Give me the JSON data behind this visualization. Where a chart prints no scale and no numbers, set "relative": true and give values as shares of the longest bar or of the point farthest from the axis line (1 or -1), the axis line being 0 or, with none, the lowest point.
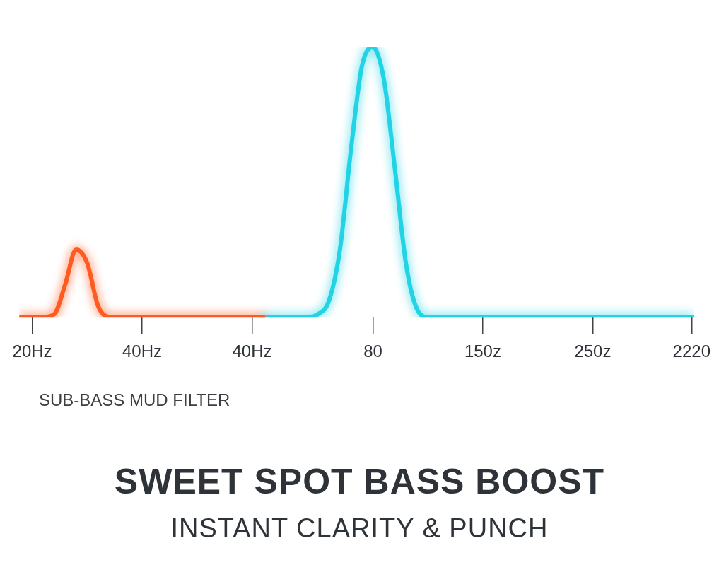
{
  "chart_data": {
    "type": "line",
    "title": "SWEET SPOT BASS BOOST",
    "subtitle": "INSTANT CLARITY & PUNCH",
    "annotations": [
      "SUB-BASS MUD FILTER"
    ],
    "relative": true,
    "grid": false,
    "legend": false,
    "marker": "none",
    "line_style": "solid",
    "categories": [
      null,
      "20Hz",
      null,
      null,
      null,
      null,
      null,
      null,
      null,
      null,
      null,
      "40Hz",
      null,
      null,
      null,
      null,
      null,
      null,
      null,
      null,
      null,
      "40Hz",
      null,
      null,
      null,
      null,
      null,
      null,
      null,
      null,
      null,
      null,
      "80",
      null,
      null,
      null,
      null,
      null,
      null,
      null,
      null,
      null,
      "150z",
      null,
      null,
      null,
      null,
      null,
      null,
      null,
      null,
      null,
      "250z",
      null,
      null,
      null,
      null,
      null,
      null,
      null,
      null,
      "2220"
    ],
    "series": [
      {
        "color": "#ff5a1f",
        "values": [
          0,
          0,
          0,
          0.01,
          0.12,
          0.25,
          0.2,
          0.04,
          0,
          0,
          0,
          0,
          0,
          0,
          0,
          0,
          0,
          0,
          0,
          0,
          0,
          0,
          0,
          null,
          null,
          null,
          null,
          null,
          null,
          null,
          null,
          null,
          null,
          null,
          null,
          null,
          null,
          null,
          null,
          null,
          null,
          null,
          null,
          null,
          null,
          null,
          null,
          null,
          null,
          null,
          null,
          null,
          null,
          null,
          null,
          null,
          null,
          null,
          null,
          null,
          null,
          null
        ]
      },
      {
        "color": "#22d3e6",
        "values": [
          null,
          null,
          null,
          null,
          null,
          null,
          null,
          null,
          null,
          null,
          null,
          null,
          null,
          null,
          null,
          null,
          null,
          null,
          null,
          null,
          null,
          null,
          0,
          0,
          0,
          0,
          0,
          0.01,
          0.06,
          0.25,
          0.62,
          0.93,
          1,
          0.88,
          0.55,
          0.2,
          0.03,
          0,
          0,
          0,
          0,
          0,
          0,
          0,
          0,
          0,
          0,
          0,
          0,
          0,
          0,
          0,
          0,
          0,
          0,
          0,
          0,
          0,
          0,
          0,
          0,
          0
        ]
      }
    ]
  }
}
